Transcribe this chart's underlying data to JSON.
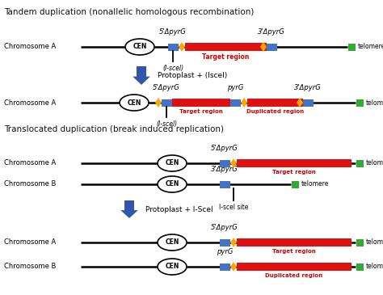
{
  "title1": "Tandem duplication (nonallelic homologous recombination)",
  "title2": "Translocated duplication (break induced replication)",
  "bg_color": "#ffffff",
  "colors": {
    "red": "#dd1111",
    "blue": "#4472c4",
    "orange": "#ffa500",
    "green": "#33aa33",
    "black": "#000000",
    "arrow_blue": "#3355aa",
    "text_dark": "#111111",
    "text_red": "#cc0000"
  },
  "labels": {
    "chr_a": "Chromosome A",
    "chr_b": "Chromosome B",
    "cen": "CEN",
    "telomere": "telomere",
    "iscel_paren": "(I-scel)",
    "iscel_site": "I-scel site",
    "protoplast1": "Protoplast + (Iscel)",
    "protoplast2": "Protoplast + I-Scel",
    "target": "Target region",
    "duplicated": "Duplicated region",
    "5prime": "5’ΔpyrG",
    "3prime": "3’ΔpyrG",
    "pyrG": "pyrG"
  }
}
